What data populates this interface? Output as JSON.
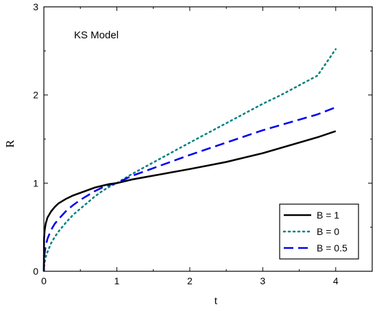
{
  "chart_data": {
    "type": "line",
    "annotation": "KS Model",
    "xlabel": "t",
    "ylabel": "R",
    "xlim": [
      0,
      4.5
    ],
    "ylim": [
      0,
      3
    ],
    "xticks": [
      "0",
      "1",
      "2",
      "3",
      "4"
    ],
    "yticks": [
      "0",
      "1",
      "2",
      "3"
    ],
    "grid": false,
    "legend_position": "bottom-right",
    "series": [
      {
        "name": "B = 1",
        "color": "#000000",
        "style": "solid",
        "x": [
          0.0,
          0.0025,
          0.01,
          0.025,
          0.05,
          0.1,
          0.15,
          0.2,
          0.3,
          0.4,
          0.5,
          0.6,
          0.7,
          0.8,
          0.9,
          1.0,
          1.2,
          1.4,
          1.6,
          1.8,
          2.0,
          2.25,
          2.5,
          2.75,
          3.0,
          3.25,
          3.5,
          3.75,
          4.0
        ],
        "values": [
          0.0,
          0.37,
          0.46,
          0.54,
          0.61,
          0.68,
          0.73,
          0.77,
          0.82,
          0.86,
          0.89,
          0.92,
          0.95,
          0.97,
          0.99,
          1.0,
          1.04,
          1.07,
          1.1,
          1.13,
          1.16,
          1.2,
          1.24,
          1.29,
          1.34,
          1.4,
          1.46,
          1.52,
          1.59
        ]
      },
      {
        "name": "B = 0",
        "color": "#008080",
        "style": "dotted",
        "x": [
          0.0,
          0.0025,
          0.01,
          0.025,
          0.05,
          0.1,
          0.15,
          0.2,
          0.3,
          0.4,
          0.5,
          0.6,
          0.7,
          0.8,
          0.9,
          1.0,
          1.2,
          1.4,
          1.6,
          1.8,
          2.0,
          2.25,
          2.5,
          2.75,
          3.0,
          3.25,
          3.5,
          3.75,
          4.0
        ],
        "values": [
          0.0,
          0.05,
          0.1,
          0.16,
          0.22,
          0.32,
          0.39,
          0.45,
          0.55,
          0.64,
          0.71,
          0.78,
          0.85,
          0.91,
          0.96,
          1.0,
          1.1,
          1.19,
          1.28,
          1.37,
          1.46,
          1.57,
          1.68,
          1.79,
          1.9,
          2.0,
          2.11,
          2.22,
          2.52
        ]
      },
      {
        "name": "B = 0.5",
        "color": "#0000ee",
        "style": "dashed",
        "x": [
          0.0,
          0.0025,
          0.01,
          0.025,
          0.05,
          0.1,
          0.15,
          0.2,
          0.3,
          0.4,
          0.5,
          0.6,
          0.7,
          0.8,
          0.9,
          1.0,
          1.2,
          1.4,
          1.6,
          1.8,
          2.0,
          2.25,
          2.5,
          2.75,
          3.0,
          3.25,
          3.5,
          3.75,
          4.0
        ],
        "values": [
          0.0,
          0.12,
          0.2,
          0.29,
          0.37,
          0.47,
          0.54,
          0.59,
          0.68,
          0.75,
          0.81,
          0.86,
          0.91,
          0.95,
          0.98,
          1.0,
          1.08,
          1.14,
          1.2,
          1.26,
          1.32,
          1.39,
          1.46,
          1.53,
          1.6,
          1.66,
          1.72,
          1.78,
          1.86
        ]
      }
    ]
  }
}
